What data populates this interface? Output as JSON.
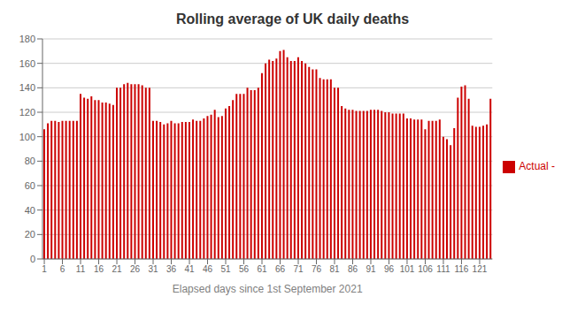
{
  "chart_data": {
    "type": "bar",
    "title": "Rolling average of UK daily deaths",
    "xlabel": "Elapsed days since 1st September 2021",
    "x": [
      1,
      2,
      3,
      4,
      5,
      6,
      7,
      8,
      9,
      10,
      11,
      12,
      13,
      14,
      15,
      16,
      17,
      18,
      19,
      20,
      21,
      22,
      23,
      24,
      25,
      26,
      27,
      28,
      29,
      30,
      31,
      32,
      33,
      34,
      35,
      36,
      37,
      38,
      39,
      40,
      41,
      42,
      43,
      44,
      45,
      46,
      47,
      48,
      49,
      50,
      51,
      52,
      53,
      54,
      55,
      56,
      57,
      58,
      59,
      60,
      61,
      62,
      63,
      64,
      65,
      66,
      67,
      68,
      69,
      70,
      71,
      72,
      73,
      74,
      75,
      76,
      77,
      78,
      79,
      80,
      81,
      82,
      83,
      84,
      85,
      86,
      87,
      88,
      89,
      90,
      91,
      92,
      93,
      94,
      95,
      96,
      97,
      98,
      99,
      100,
      101,
      102,
      103,
      104,
      105,
      106,
      107,
      108,
      109,
      110,
      111,
      112,
      113,
      114,
      115,
      116,
      117,
      118,
      119,
      120,
      121,
      122,
      123,
      124
    ],
    "series": [
      {
        "name": "Actual -",
        "color": "#CC0000",
        "values": [
          106,
          111,
          113,
          113,
          112,
          113,
          113,
          113,
          113,
          113,
          135,
          132,
          131,
          133,
          130,
          130,
          128,
          128,
          127,
          126,
          140,
          140,
          143,
          144,
          143,
          143,
          143,
          142,
          140,
          140,
          113,
          113,
          112,
          110,
          111,
          113,
          111,
          111,
          112,
          112,
          112,
          114,
          113,
          113,
          115,
          117,
          118,
          122,
          116,
          117,
          123,
          125,
          130,
          135,
          135,
          135,
          140,
          138,
          138,
          140,
          152,
          160,
          163,
          162,
          164,
          170,
          171,
          165,
          162,
          162,
          165,
          162,
          160,
          157,
          155,
          155,
          148,
          147,
          147,
          147,
          140,
          140,
          125,
          123,
          122,
          122,
          121,
          121,
          121,
          121,
          122,
          122,
          122,
          121,
          120,
          120,
          119,
          119,
          119,
          119,
          115,
          115,
          114,
          114,
          114,
          106,
          113,
          113,
          113,
          114,
          100,
          98,
          93,
          107,
          132,
          141,
          142,
          131,
          109,
          108,
          108,
          109,
          110,
          131
        ]
      }
    ],
    "xlim": [
      0.5,
      124.5
    ],
    "xticks": [
      1,
      6,
      11,
      16,
      21,
      26,
      31,
      36,
      41,
      46,
      51,
      56,
      61,
      66,
      71,
      76,
      81,
      86,
      91,
      96,
      101,
      106,
      111,
      116,
      121
    ],
    "ylim": [
      0,
      180
    ],
    "yticks": [
      0,
      20,
      40,
      60,
      80,
      100,
      120,
      140,
      160,
      180
    ],
    "grid": "y",
    "legend": "right"
  }
}
